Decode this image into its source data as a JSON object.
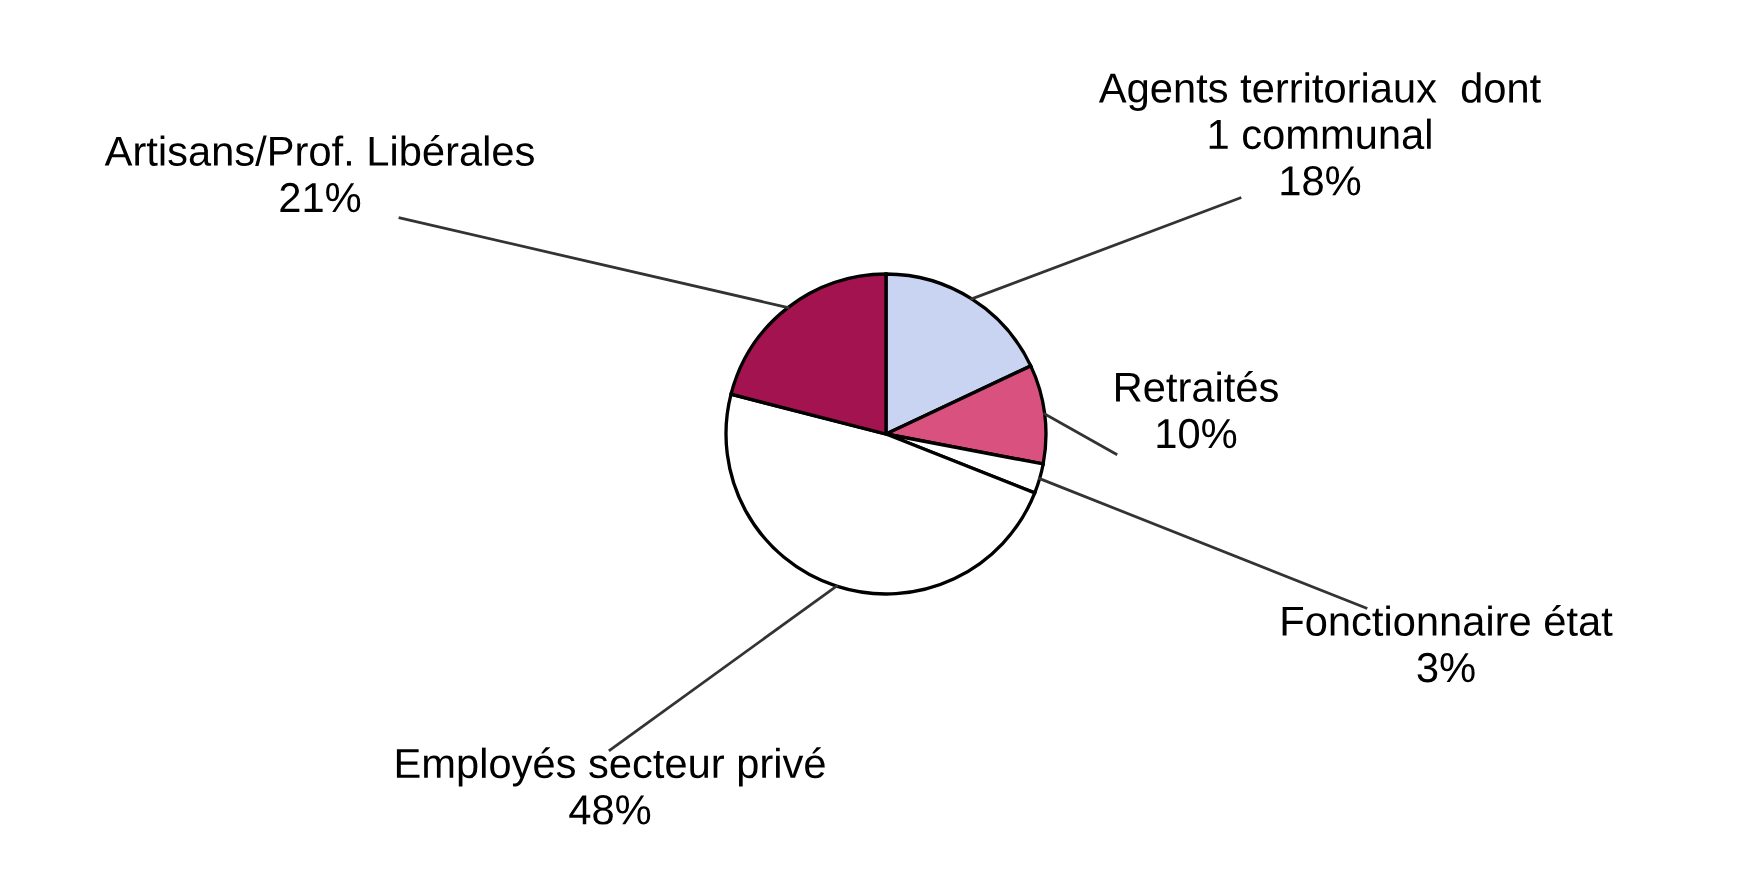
{
  "chart_data": {
    "type": "pie",
    "categories": [
      "Agents territoriaux  dont\n1 communal",
      "Retraités",
      "Fonctionnaire état",
      "Employés secteur privé",
      "Artisans/Prof. Libérales"
    ],
    "values": [
      18,
      10,
      3,
      48,
      21
    ],
    "colors": [
      "#c9d3f2",
      "#d9517e",
      "#ffffff",
      "#ffffff",
      "#a3134f"
    ],
    "value_labels": [
      "18%",
      "10%",
      "3%",
      "48%",
      "21%"
    ],
    "legend": false
  }
}
